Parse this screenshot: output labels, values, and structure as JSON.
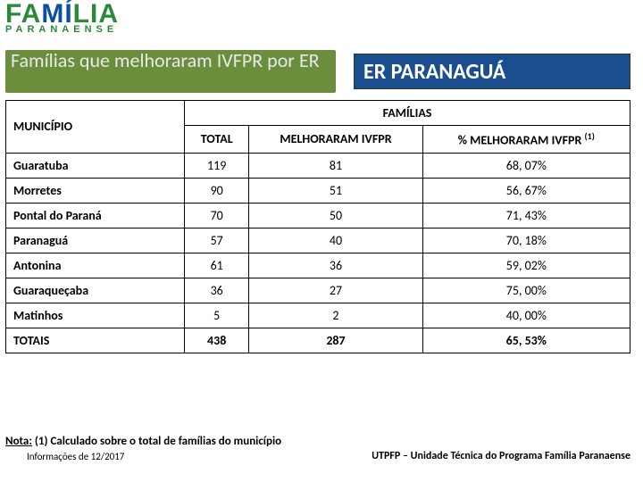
{
  "logo": {
    "line1_part1": "FA",
    "line1_part2": "MÍ",
    "line1_part3": "LIA",
    "line2": "PARANAENSE"
  },
  "title": "Famílias que melhoraram IVFPR por ER",
  "region": "ER PARANAGUÁ",
  "table": {
    "header_municipio": "MUNICÍPIO",
    "header_familias": "FAMÍLIAS",
    "header_total": "TOTAL",
    "header_melhoraram": "MELHORARAM IVFPR",
    "header_pct": "% MELHORARAM IVFPR ",
    "header_pct_sup": "(1)",
    "rows": [
      {
        "mun": "Guaratuba",
        "total": "119",
        "mel": "81",
        "pct": "68, 07%"
      },
      {
        "mun": "Morretes",
        "total": "90",
        "mel": "51",
        "pct": "56, 67%"
      },
      {
        "mun": "Pontal do Paraná",
        "total": "70",
        "mel": "50",
        "pct": "71, 43%"
      },
      {
        "mun": "Paranaguá",
        "total": "57",
        "mel": "40",
        "pct": "70, 18%"
      },
      {
        "mun": "Antonina",
        "total": "61",
        "mel": "36",
        "pct": "59, 02%"
      },
      {
        "mun": "Guaraqueçaba",
        "total": "36",
        "mel": "27",
        "pct": "75, 00%"
      },
      {
        "mun": "Matinhos",
        "total": "5",
        "mel": "2",
        "pct": "40, 00%"
      }
    ],
    "totals": {
      "mun": "TOTAIS",
      "total": "438",
      "mel": "287",
      "pct": "65, 53%"
    }
  },
  "footer": {
    "note_label": "Nota:",
    "note_text": " (1) Calculado sobre o total de famílias do município",
    "info": "Informações de 12/2017",
    "right": "UTPFP – Unidade Técnica do Programa Família Paranaense"
  },
  "colors": {
    "title_bg": "#6b8e3d",
    "region_bg": "#1a4e8e",
    "logo_green": "#2a8a3a",
    "logo_blue": "#0a4fa0"
  }
}
